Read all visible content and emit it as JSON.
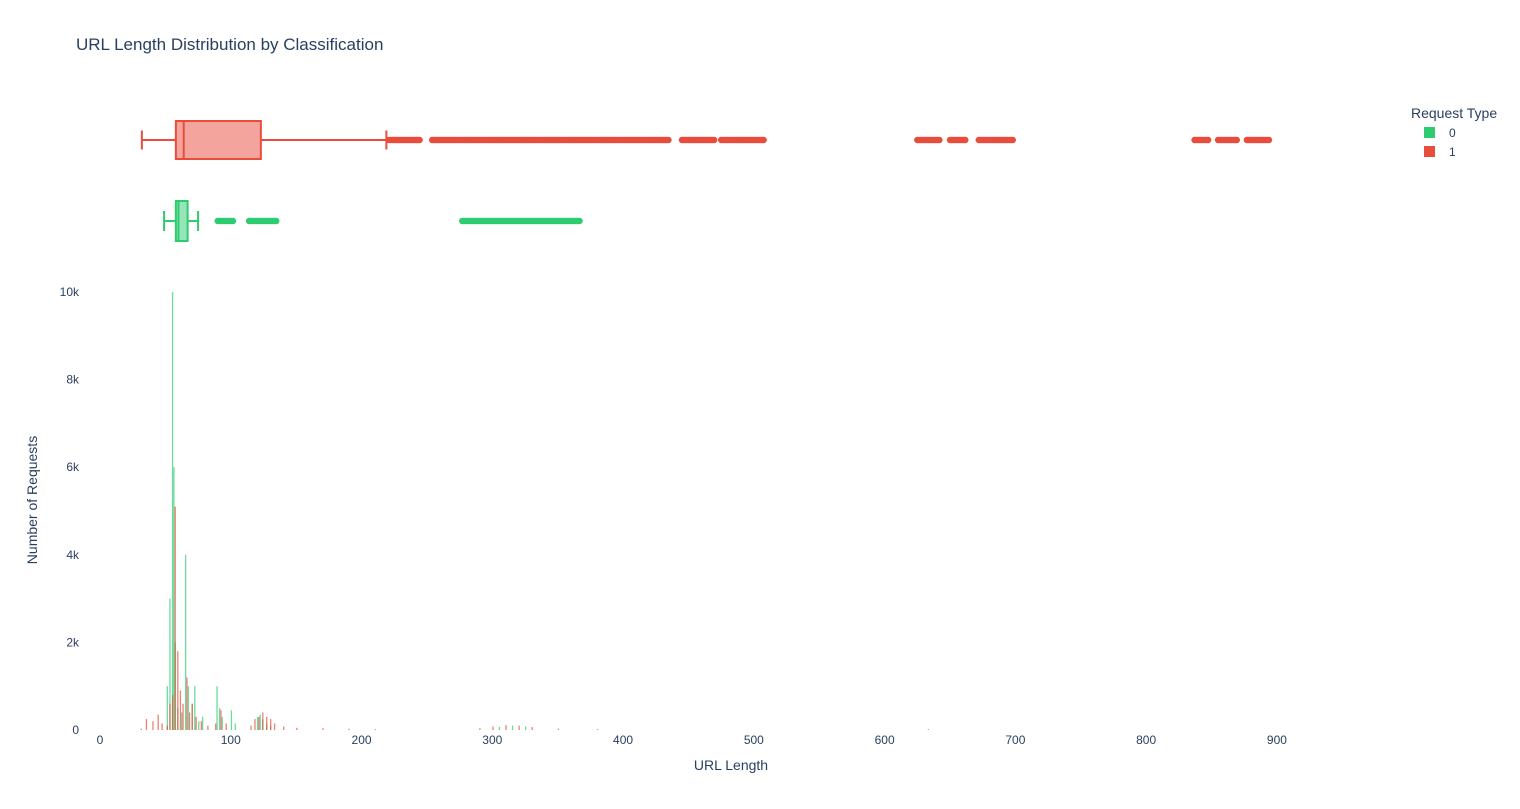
{
  "chart_data": {
    "type": "histogram",
    "title": "URL Length Distribution by Classification",
    "xlabel": "URL Length",
    "ylabel": "Number of Requests",
    "xlim": [
      0,
      1040
    ],
    "ylim": [
      0,
      10000
    ],
    "x_ticks": [
      {
        "value": 0,
        "label": "0"
      },
      {
        "value": 100,
        "label": "100"
      },
      {
        "value": 200,
        "label": "200"
      },
      {
        "value": 300,
        "label": "300"
      },
      {
        "value": 400,
        "label": "400"
      },
      {
        "value": 500,
        "label": "500"
      },
      {
        "value": 600,
        "label": "600"
      },
      {
        "value": 700,
        "label": "700"
      },
      {
        "value": 800,
        "label": "800"
      },
      {
        "value": 900,
        "label": "900"
      }
    ],
    "y_ticks": [
      {
        "value": 0,
        "label": "0"
      },
      {
        "value": 2000,
        "label": "2k"
      },
      {
        "value": 4000,
        "label": "4k"
      },
      {
        "value": 6000,
        "label": "6k"
      },
      {
        "value": 8000,
        "label": "8k"
      },
      {
        "value": 10000,
        "label": "10k"
      }
    ],
    "grid": false,
    "legend": {
      "title": "Request Type",
      "placement": "top-right"
    },
    "series": [
      {
        "name": "0",
        "color": "#2ecc71",
        "histogram": [
          {
            "x": 51,
            "count": 1000
          },
          {
            "x": 53,
            "count": 3000
          },
          {
            "x": 55,
            "count": 10000
          },
          {
            "x": 56,
            "count": 6000
          },
          {
            "x": 57,
            "count": 2000
          },
          {
            "x": 59,
            "count": 500
          },
          {
            "x": 62,
            "count": 400
          },
          {
            "x": 65,
            "count": 4000
          },
          {
            "x": 67,
            "count": 1000
          },
          {
            "x": 70,
            "count": 600
          },
          {
            "x": 72,
            "count": 1000
          },
          {
            "x": 75,
            "count": 200
          },
          {
            "x": 78,
            "count": 300
          },
          {
            "x": 89,
            "count": 1000
          },
          {
            "x": 91,
            "count": 500
          },
          {
            "x": 93,
            "count": 300
          },
          {
            "x": 100,
            "count": 450
          },
          {
            "x": 103,
            "count": 150
          },
          {
            "x": 120,
            "count": 300
          },
          {
            "x": 122,
            "count": 350
          },
          {
            "x": 124,
            "count": 250
          },
          {
            "x": 127,
            "count": 150
          },
          {
            "x": 130,
            "count": 100
          },
          {
            "x": 305,
            "count": 70
          },
          {
            "x": 315,
            "count": 100
          },
          {
            "x": 325,
            "count": 80
          }
        ],
        "box": {
          "whisker_low": 49,
          "q1": 58,
          "median": 60,
          "q3": 67,
          "whisker_high": 75,
          "outliers": [
            [
              90,
              102
            ],
            [
              114,
              136
            ],
            [
              277,
              368
            ]
          ]
        }
      },
      {
        "name": "1",
        "color": "#e74c3c",
        "histogram": [
          {
            "x": 31,
            "count": 30
          },
          {
            "x": 35,
            "count": 250
          },
          {
            "x": 40,
            "count": 200
          },
          {
            "x": 44,
            "count": 350
          },
          {
            "x": 47,
            "count": 150
          },
          {
            "x": 51,
            "count": 100
          },
          {
            "x": 53,
            "count": 600
          },
          {
            "x": 55,
            "count": 800
          },
          {
            "x": 57,
            "count": 5100
          },
          {
            "x": 59,
            "count": 1800
          },
          {
            "x": 61,
            "count": 900
          },
          {
            "x": 63,
            "count": 600
          },
          {
            "x": 66,
            "count": 1200
          },
          {
            "x": 68,
            "count": 400
          },
          {
            "x": 70,
            "count": 600
          },
          {
            "x": 73,
            "count": 300
          },
          {
            "x": 77,
            "count": 200
          },
          {
            "x": 82,
            "count": 100
          },
          {
            "x": 88,
            "count": 150
          },
          {
            "x": 92,
            "count": 450
          },
          {
            "x": 96,
            "count": 150
          },
          {
            "x": 115,
            "count": 100
          },
          {
            "x": 118,
            "count": 250
          },
          {
            "x": 121,
            "count": 300
          },
          {
            "x": 124,
            "count": 400
          },
          {
            "x": 127,
            "count": 300
          },
          {
            "x": 130,
            "count": 250
          },
          {
            "x": 133,
            "count": 150
          },
          {
            "x": 140,
            "count": 80
          },
          {
            "x": 150,
            "count": 50
          },
          {
            "x": 170,
            "count": 40
          },
          {
            "x": 190,
            "count": 30
          },
          {
            "x": 210,
            "count": 20
          },
          {
            "x": 290,
            "count": 40
          },
          {
            "x": 300,
            "count": 80
          },
          {
            "x": 310,
            "count": 110
          },
          {
            "x": 320,
            "count": 100
          },
          {
            "x": 330,
            "count": 70
          },
          {
            "x": 350,
            "count": 30
          },
          {
            "x": 380,
            "count": 20
          },
          {
            "x": 633,
            "count": 20
          }
        ],
        "box": {
          "whisker_low": 32,
          "q1": 58,
          "median": 64,
          "q3": 123,
          "whisker_high": 219,
          "outliers": [
            [
              221,
              245
            ],
            [
              254,
              436
            ],
            [
              445,
              470
            ],
            [
              475,
              508
            ],
            [
              625,
              642
            ],
            [
              650,
              662
            ],
            [
              672,
              698
            ],
            [
              837,
              848
            ],
            [
              855,
              870
            ],
            [
              877,
              895
            ]
          ]
        }
      }
    ]
  }
}
